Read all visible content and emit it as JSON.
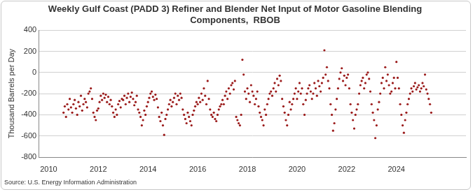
{
  "chart_data": {
    "type": "scatter",
    "title": "Weekly Gulf Coast (PADD 3) Refiner and Blender Net Input of Motor Gasoline Blending Components,  RBOB",
    "y_label": "Thousand Barrels per Day",
    "source": "Source: U.S. Energy Information Administration",
    "color": "#9b1b1b",
    "marker": "circle",
    "grid": true,
    "xlim": [
      2009.6,
      2026.8
    ],
    "xticks": [
      2010,
      2012,
      2014,
      2016,
      2018,
      2020,
      2022,
      2024
    ],
    "ylim": [
      -800,
      400
    ],
    "yticks": [
      -800,
      -600,
      -400,
      -200,
      0,
      200,
      400
    ],
    "x": [
      2010.6,
      2010.65,
      2010.7,
      2010.75,
      2010.8,
      2010.85,
      2010.9,
      2010.95,
      2011.0,
      2011.05,
      2011.1,
      2011.15,
      2011.2,
      2011.25,
      2011.3,
      2011.35,
      2011.4,
      2011.45,
      2011.5,
      2011.55,
      2011.6,
      2011.65,
      2011.7,
      2011.75,
      2011.8,
      2011.85,
      2011.9,
      2011.95,
      2012.0,
      2012.05,
      2012.1,
      2012.15,
      2012.2,
      2012.25,
      2012.3,
      2012.35,
      2012.4,
      2012.45,
      2012.5,
      2012.55,
      2012.6,
      2012.65,
      2012.7,
      2012.75,
      2012.8,
      2012.85,
      2012.9,
      2012.95,
      2013.0,
      2013.05,
      2013.1,
      2013.15,
      2013.2,
      2013.25,
      2013.3,
      2013.35,
      2013.4,
      2013.45,
      2013.5,
      2013.55,
      2013.6,
      2013.65,
      2013.7,
      2013.75,
      2013.8,
      2013.85,
      2013.9,
      2013.95,
      2014.0,
      2014.05,
      2014.1,
      2014.15,
      2014.2,
      2014.25,
      2014.3,
      2014.35,
      2014.4,
      2014.45,
      2014.5,
      2014.55,
      2014.6,
      2014.65,
      2014.7,
      2014.75,
      2014.8,
      2014.85,
      2014.9,
      2014.95,
      2015.0,
      2015.05,
      2015.1,
      2015.15,
      2015.2,
      2015.25,
      2015.3,
      2015.35,
      2015.4,
      2015.45,
      2015.5,
      2015.55,
      2015.6,
      2015.65,
      2015.7,
      2015.75,
      2015.8,
      2015.85,
      2015.9,
      2015.95,
      2016.0,
      2016.05,
      2016.1,
      2016.15,
      2016.2,
      2016.25,
      2016.3,
      2016.35,
      2016.4,
      2016.45,
      2016.5,
      2016.55,
      2016.6,
      2016.65,
      2016.7,
      2016.75,
      2016.8,
      2016.85,
      2016.9,
      2016.95,
      2017.0,
      2017.05,
      2017.1,
      2017.15,
      2017.2,
      2017.25,
      2017.3,
      2017.35,
      2017.4,
      2017.45,
      2017.5,
      2017.55,
      2017.6,
      2017.65,
      2017.7,
      2017.75,
      2017.8,
      2017.85,
      2017.9,
      2017.95,
      2018.0,
      2018.05,
      2018.1,
      2018.15,
      2018.2,
      2018.25,
      2018.3,
      2018.35,
      2018.4,
      2018.45,
      2018.5,
      2018.55,
      2018.6,
      2018.65,
      2018.7,
      2018.75,
      2018.8,
      2018.85,
      2018.9,
      2018.95,
      2019.0,
      2019.05,
      2019.1,
      2019.15,
      2019.2,
      2019.25,
      2019.3,
      2019.35,
      2019.4,
      2019.45,
      2019.5,
      2019.55,
      2019.6,
      2019.65,
      2019.7,
      2019.75,
      2019.8,
      2019.85,
      2019.9,
      2019.95,
      2020.0,
      2020.05,
      2020.1,
      2020.15,
      2020.2,
      2020.25,
      2020.3,
      2020.35,
      2020.4,
      2020.45,
      2020.5,
      2020.55,
      2020.6,
      2020.65,
      2020.7,
      2020.75,
      2020.8,
      2020.85,
      2020.9,
      2020.95,
      2021.0,
      2021.05,
      2021.1,
      2021.15,
      2021.2,
      2021.25,
      2021.3,
      2021.35,
      2021.4,
      2021.45,
      2021.5,
      2021.55,
      2021.6,
      2021.65,
      2021.7,
      2021.75,
      2021.8,
      2021.85,
      2021.9,
      2021.95,
      2022.0,
      2022.05,
      2022.1,
      2022.15,
      2022.2,
      2022.25,
      2022.3,
      2022.35,
      2022.4,
      2022.45,
      2022.5,
      2022.55,
      2022.6,
      2022.65,
      2022.7,
      2022.75,
      2022.8,
      2022.85,
      2022.9,
      2022.95,
      2023.0,
      2023.05,
      2023.1,
      2023.15,
      2023.2,
      2023.25,
      2023.3,
      2023.35,
      2023.4,
      2023.45,
      2023.5,
      2023.55,
      2023.6,
      2023.65,
      2023.7,
      2023.75,
      2023.8,
      2023.85,
      2023.9,
      2023.95,
      2024.0,
      2024.05,
      2024.1,
      2024.15,
      2024.2,
      2024.25,
      2024.3,
      2024.35,
      2024.4,
      2024.45,
      2024.5,
      2024.55,
      2024.6,
      2024.65,
      2024.7,
      2024.75,
      2024.8,
      2024.85,
      2024.9,
      2024.95,
      2025.0,
      2025.05,
      2025.1,
      2025.15,
      2025.2,
      2025.25,
      2025.3,
      2025.35,
      2025.4
    ],
    "values": [
      -380,
      -320,
      -420,
      -300,
      -350,
      -250,
      -330,
      -380,
      -300,
      -260,
      -340,
      -400,
      -280,
      -320,
      -220,
      -360,
      -300,
      -250,
      -280,
      -330,
      -200,
      -180,
      -150,
      -250,
      -380,
      -420,
      -450,
      -360,
      -340,
      -280,
      -220,
      -260,
      -200,
      -240,
      -210,
      -280,
      -230,
      -300,
      -260,
      -320,
      -380,
      -420,
      -350,
      -400,
      -300,
      -270,
      -330,
      -250,
      -260,
      -220,
      -300,
      -240,
      -200,
      -280,
      -230,
      -190,
      -250,
      -310,
      -280,
      -220,
      -350,
      -380,
      -420,
      -500,
      -450,
      -360,
      -400,
      -320,
      -280,
      -240,
      -200,
      -180,
      -230,
      -260,
      -210,
      -250,
      -330,
      -420,
      -460,
      -380,
      -500,
      -590,
      -440,
      -400,
      -350,
      -300,
      -260,
      -320,
      -280,
      -240,
      -200,
      -300,
      -220,
      -260,
      -200,
      -240,
      -350,
      -400,
      -440,
      -480,
      -380,
      -420,
      -460,
      -500,
      -400,
      -360,
      -320,
      -280,
      -300,
      -240,
      -280,
      -200,
      -260,
      -150,
      -220,
      -300,
      -80,
      -250,
      -350,
      -400,
      -420,
      -380,
      -440,
      -460,
      -400,
      -350,
      -320,
      -300,
      -260,
      -300,
      -220,
      -180,
      -250,
      -150,
      -200,
      -120,
      -100,
      -160,
      -80,
      -420,
      -450,
      -480,
      -500,
      -400,
      120,
      -20,
      -180,
      -250,
      -150,
      -200,
      -280,
      -120,
      -180,
      -220,
      -300,
      -250,
      -180,
      -320,
      -380,
      -420,
      -450,
      -500,
      -350,
      -400,
      -300,
      -250,
      -200,
      -180,
      -220,
      -150,
      -100,
      -180,
      -60,
      -120,
      -30,
      -80,
      -250,
      -320,
      -380,
      -450,
      -500,
      -400,
      -280,
      -350,
      -300,
      -250,
      -200,
      -150,
      -250,
      -180,
      -100,
      -200,
      -150,
      -300,
      -400,
      -260,
      -200,
      -150,
      -120,
      -180,
      -250,
      -200,
      -100,
      -150,
      -220,
      -80,
      -130,
      -180,
      -100,
      -50,
      210,
      -20,
      50,
      -80,
      -150,
      -300,
      -400,
      -550,
      -480,
      -350,
      -250,
      -150,
      -60,
      0,
      40,
      -80,
      -30,
      -120,
      -50,
      -20,
      -150,
      -300,
      -380,
      -450,
      -530,
      -400,
      -350,
      -300,
      -200,
      -120,
      -80,
      -50,
      -150,
      -100,
      -20,
      0,
      -60,
      -180,
      -300,
      -380,
      -450,
      -620,
      -500,
      -350,
      -280,
      -200,
      -100,
      -50,
      -150,
      50,
      -80,
      -20,
      -120,
      -200,
      -180,
      -100,
      -50,
      -150,
      100,
      -50,
      -150,
      -300,
      -400,
      -500,
      -570,
      -450,
      -380,
      -300,
      -250,
      -200,
      -150,
      -180,
      -130,
      -100,
      -160,
      -140,
      -120,
      -180,
      -150,
      -100,
      -130,
      -20,
      -160,
      -200,
      -250,
      -300,
      -380
    ]
  }
}
